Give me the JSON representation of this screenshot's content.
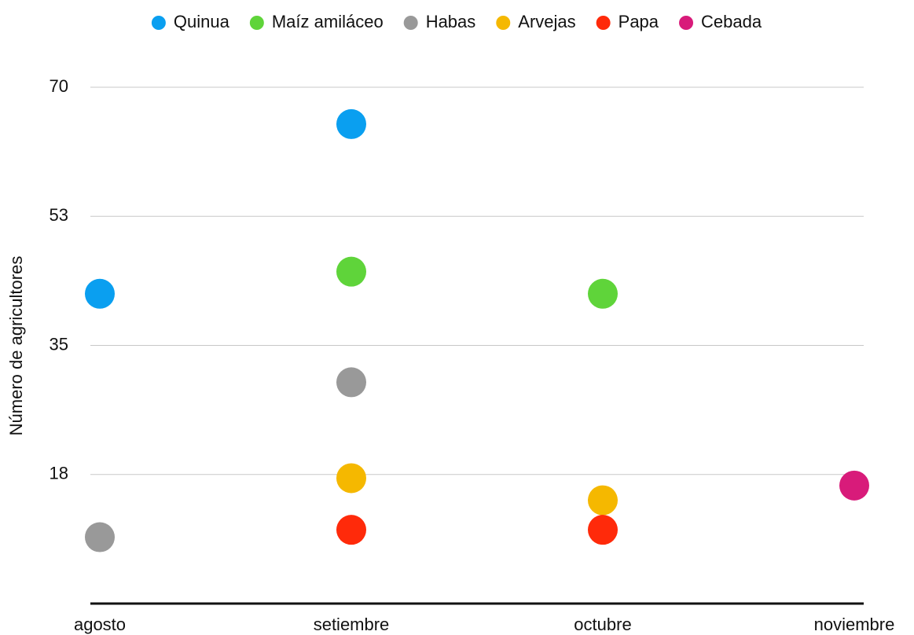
{
  "chart_data": {
    "type": "dot",
    "y_label": "Número de agricultores",
    "categories": [
      "agosto",
      "setiembre",
      "octubre",
      "noviembre"
    ],
    "series": [
      {
        "name": "Quinua",
        "color": "#0a9ff0",
        "values": [
          42,
          65,
          null,
          null
        ]
      },
      {
        "name": "Maíz amiláceo",
        "color": "#5fd43a",
        "values": [
          null,
          45,
          42,
          null
        ]
      },
      {
        "name": "Habas",
        "color": "#999999",
        "values": [
          9,
          30,
          null,
          null
        ]
      },
      {
        "name": "Arvejas",
        "color": "#f5b800",
        "values": [
          null,
          17,
          14,
          null
        ]
      },
      {
        "name": "Papa",
        "color": "#ff2a0a",
        "values": [
          null,
          10,
          10,
          null
        ]
      },
      {
        "name": "Cebada",
        "color": "#d81b7a",
        "values": [
          null,
          null,
          null,
          16
        ]
      }
    ],
    "ylim": [
      0,
      70
    ],
    "yticks": [
      {
        "value": 17.5,
        "label": "18"
      },
      35,
      {
        "value": 52.5,
        "label": "53"
      },
      70
    ],
    "grid": true,
    "legend": "top"
  }
}
